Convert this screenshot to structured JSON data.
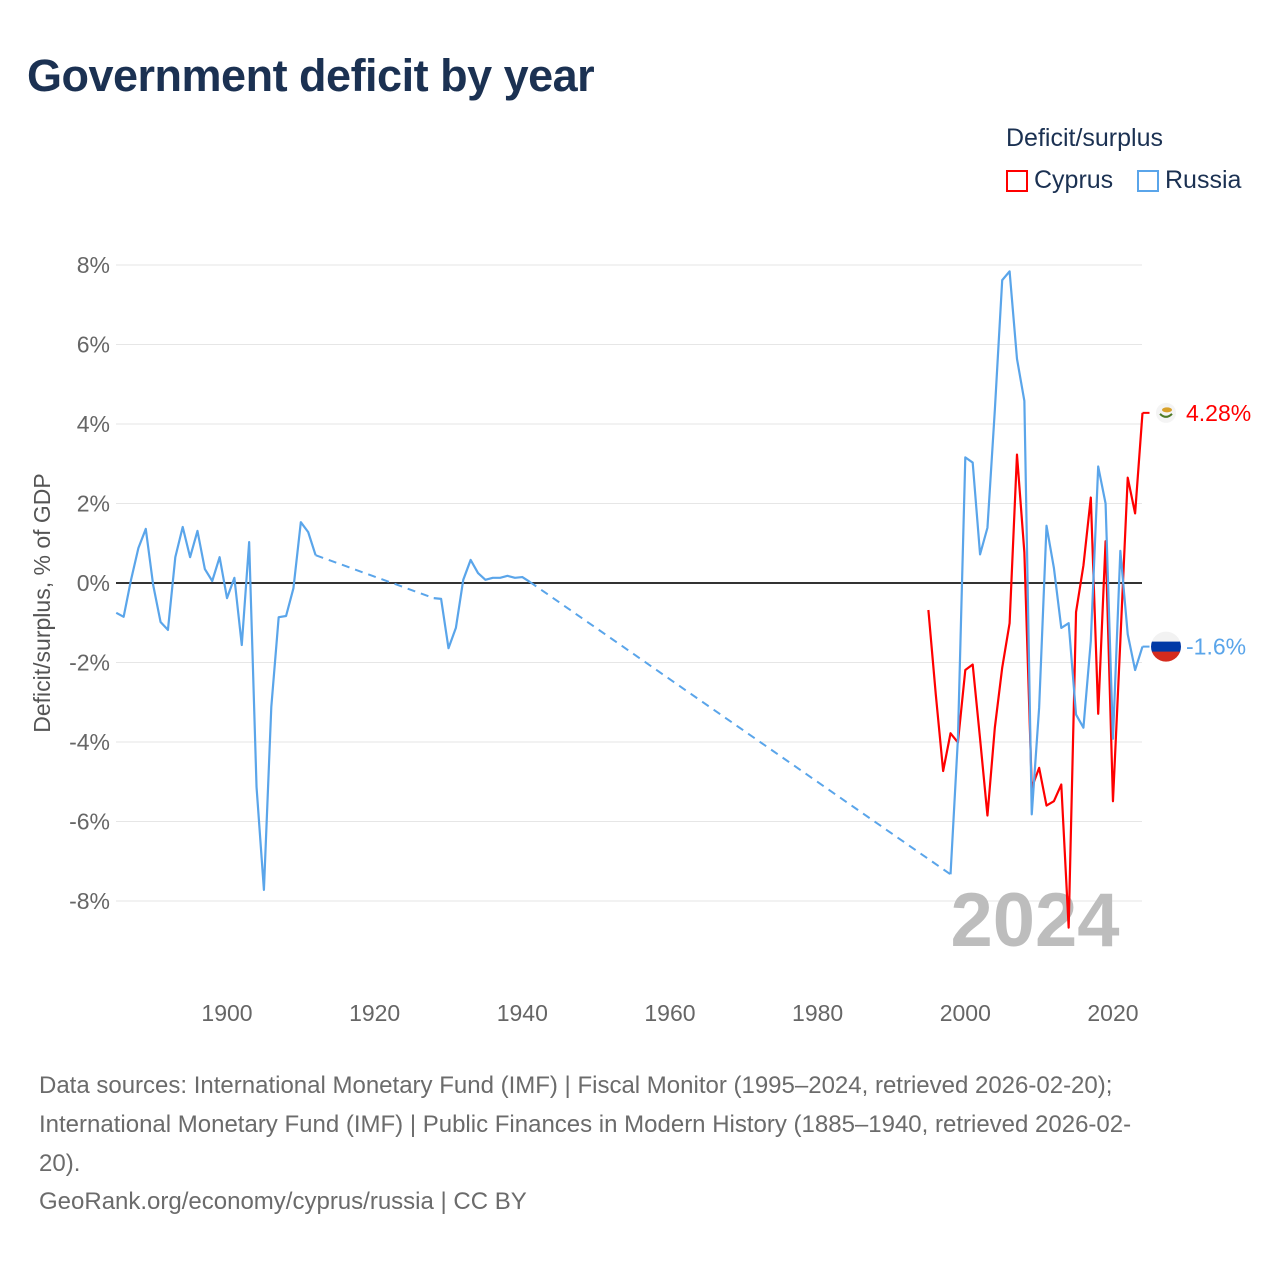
{
  "title": "Government deficit by year",
  "legend": {
    "title": "Deficit/surplus",
    "items": [
      {
        "label": "Cyprus",
        "color": "#ff0000"
      },
      {
        "label": "Russia",
        "color": "#5aa5ea"
      }
    ]
  },
  "chart_data": {
    "type": "line",
    "title": "Government deficit by year",
    "xlabel": "",
    "ylabel": "Deficit/surplus, % of GDP",
    "xlim": [
      1885,
      2024
    ],
    "ylim": [
      -10,
      8.5
    ],
    "yticks": [
      8,
      6,
      4,
      2,
      0,
      -2,
      -4,
      -6,
      -8
    ],
    "ytick_labels": [
      "8%",
      "6%",
      "4%",
      "2%",
      "0%",
      "-2%",
      "-4%",
      "-6%",
      "-8%"
    ],
    "xticks": [
      1900,
      1920,
      1940,
      1960,
      1980,
      2000,
      2020
    ],
    "xtick_labels": [
      "1900",
      "1920",
      "1940",
      "1960",
      "1980",
      "2000",
      "2020"
    ],
    "grid": true,
    "legend_position": "top-right",
    "year_watermark": "2024",
    "series": [
      {
        "name": "Cyprus",
        "color": "#ff0000",
        "end_label": "4.28%",
        "segments": [
          {
            "start_year": 1995,
            "values": [
              -0.68,
              -2.8,
              -4.73,
              -3.78,
              -4.01,
              -2.19,
              -2.05,
              -3.92,
              -5.85,
              -3.64,
              -2.13,
              -1.01,
              3.23,
              0.77,
              -5.15,
              -4.65,
              -5.6,
              -5.49,
              -5.07,
              -8.67,
              -0.73,
              0.44,
              2.15,
              -3.29,
              1.05,
              -5.49,
              -1.46,
              2.65,
              1.75,
              4.28
            ]
          }
        ]
      },
      {
        "name": "Russia",
        "color": "#5aa5ea",
        "end_label": "-1.6%",
        "segments": [
          {
            "start_year": 1885,
            "values": [
              -0.75,
              -0.85,
              0.08,
              0.88,
              1.36,
              -0.05,
              -0.98,
              -1.18,
              0.65,
              1.41,
              0.65,
              1.31,
              0.35,
              0.05,
              0.65,
              -0.38,
              0.13,
              -1.56,
              1.03,
              -5.13,
              -7.72,
              -3.12,
              -0.86,
              -0.83,
              -0.13,
              1.53,
              1.28,
              0.7
            ]
          },
          {
            "start_year": 1928,
            "values": [
              -0.38,
              -0.4,
              -1.64,
              -1.13,
              0.08,
              0.58,
              0.25,
              0.08,
              0.13,
              0.13,
              0.18,
              0.13,
              0.15,
              0.03
            ]
          },
          {
            "start_year": 1998,
            "values": [
              -7.33,
              -3.92,
              3.16,
              3.03,
              0.72,
              1.39,
              4.35,
              7.62,
              7.84,
              5.64,
              4.58,
              -5.82,
              -3.14,
              1.44,
              0.38,
              -1.13,
              -1.01,
              -3.31,
              -3.64,
              -1.46,
              2.93,
              2.0,
              -3.92,
              0.81,
              -1.29,
              -2.19,
              -1.6
            ]
          }
        ]
      }
    ]
  },
  "footer": {
    "sources_line1": "Data sources: International Monetary Fund (IMF) | Fiscal Monitor (1995–2024, retrieved 2026-02-20);",
    "sources_line2": "International Monetary Fund (IMF) | Public Finances in Modern History (1885–1940, retrieved 2026-02-",
    "sources_line3": "20).",
    "credit": "GeoRank.org/economy/cyprus/russia | CC BY"
  }
}
